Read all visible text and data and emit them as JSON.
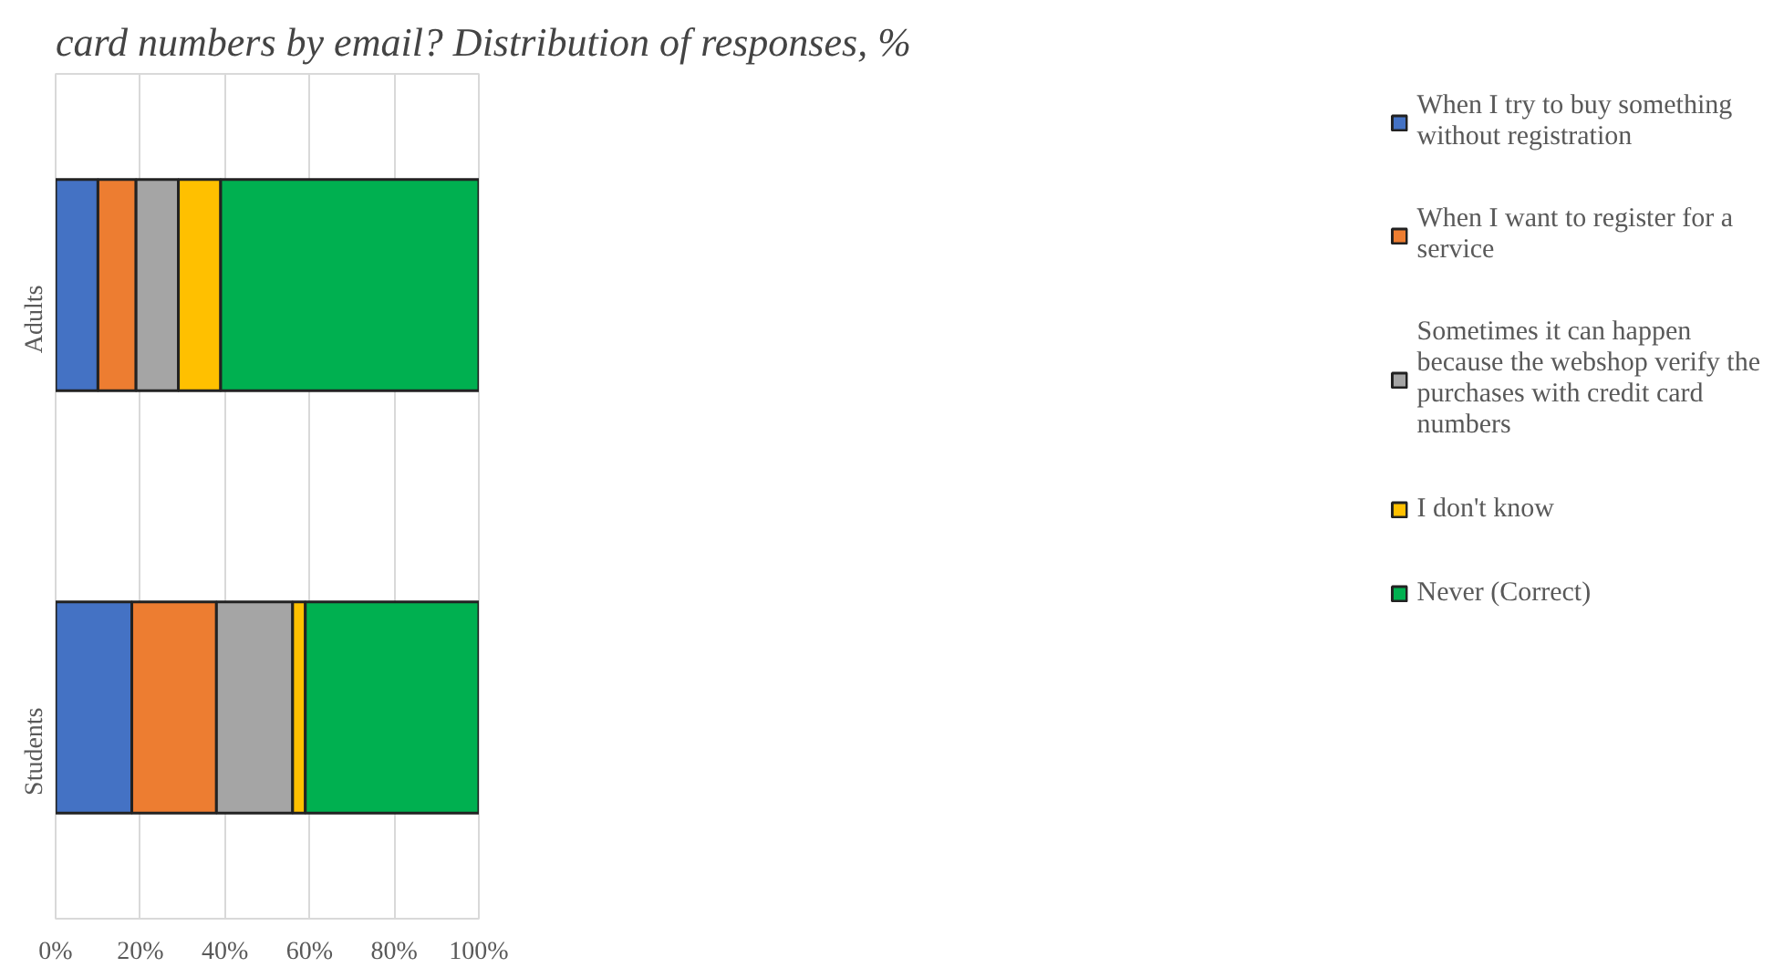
{
  "chart_data": {
    "type": "bar",
    "orientation": "horizontal",
    "stacked": true,
    "title": "card numbers by email? Distribution of responses, %",
    "categories": [
      "Adults",
      "Students"
    ],
    "series": [
      {
        "name": "When I try to buy something without registration",
        "color": "#4472c4",
        "values": [
          10,
          18
        ]
      },
      {
        "name": "When I want to register for a service",
        "color": "#ed7d31",
        "values": [
          9,
          20
        ]
      },
      {
        "name": "Sometimes it can happen because the webshop verify the purchases with credit card numbers",
        "color": "#a5a5a5",
        "values": [
          10,
          18
        ]
      },
      {
        "name": "I don't know",
        "color": "#ffc000",
        "values": [
          10,
          3
        ]
      },
      {
        "name": "Never (Correct)",
        "color": "#00b050",
        "values": [
          61,
          41
        ]
      }
    ],
    "xlim": [
      0,
      100
    ],
    "xticks": [
      {
        "value": 0,
        "label": "0%"
      },
      {
        "value": 20,
        "label": "20%"
      },
      {
        "value": 40,
        "label": "40%"
      },
      {
        "value": 60,
        "label": "60%"
      },
      {
        "value": 80,
        "label": "80%"
      },
      {
        "value": 100,
        "label": "100%"
      }
    ],
    "grid": "x",
    "legend": "right"
  }
}
